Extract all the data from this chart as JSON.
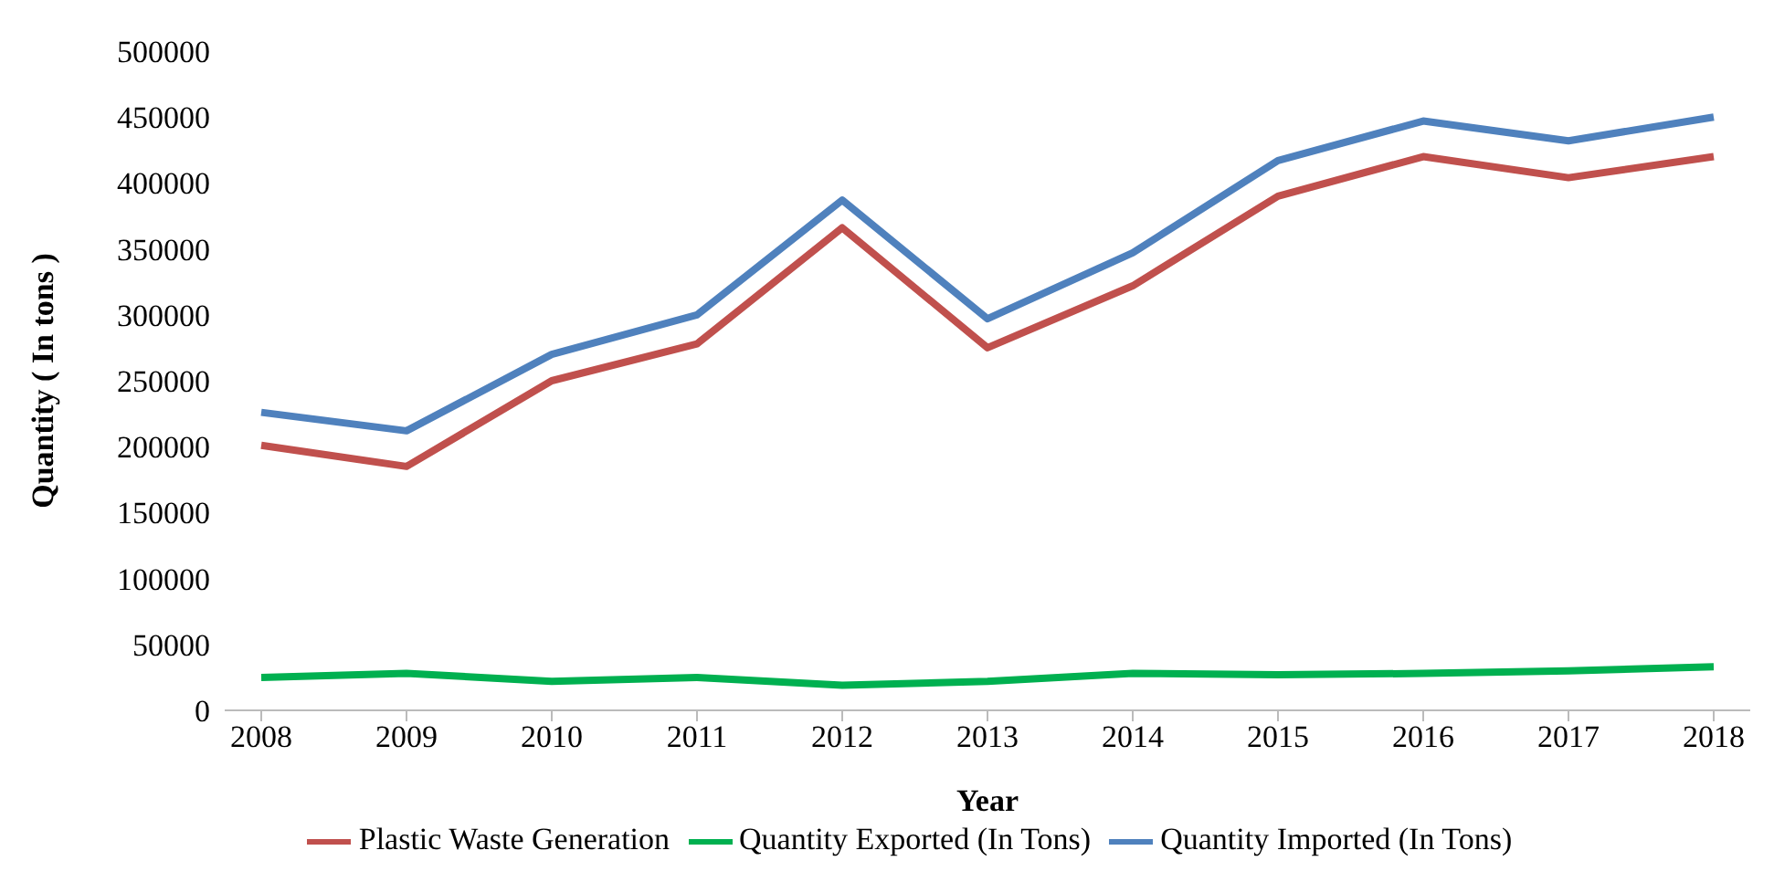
{
  "chart_data": {
    "type": "line",
    "xlabel": "Year",
    "ylabel": "Quantity ( In tons )",
    "categories": [
      "2008",
      "2009",
      "2010",
      "2011",
      "2012",
      "2013",
      "2014",
      "2015",
      "2016",
      "2017",
      "2018"
    ],
    "series": [
      {
        "name": "Quantity Imported (In Tons)",
        "color": "#4f81bd",
        "values": [
          226000,
          212000,
          270000,
          300000,
          387000,
          297000,
          347000,
          417000,
          447000,
          432000,
          450000
        ]
      },
      {
        "name": "Plastic Waste Generation",
        "color": "#c0504d",
        "values": [
          201000,
          185000,
          250000,
          278000,
          366000,
          275000,
          322000,
          390000,
          420000,
          404000,
          420000
        ]
      },
      {
        "name": "Quantity Exported (In Tons)",
        "color": "#00b050",
        "values": [
          25000,
          28000,
          22000,
          25000,
          19000,
          22000,
          28000,
          27000,
          28000,
          30000,
          33000
        ]
      }
    ],
    "ylim": [
      0,
      500000
    ],
    "yticks": [
      0,
      50000,
      100000,
      150000,
      200000,
      250000,
      300000,
      350000,
      400000,
      450000,
      500000
    ],
    "grid": false,
    "legend": "bottom",
    "marker": "none",
    "line_style": "solid"
  }
}
